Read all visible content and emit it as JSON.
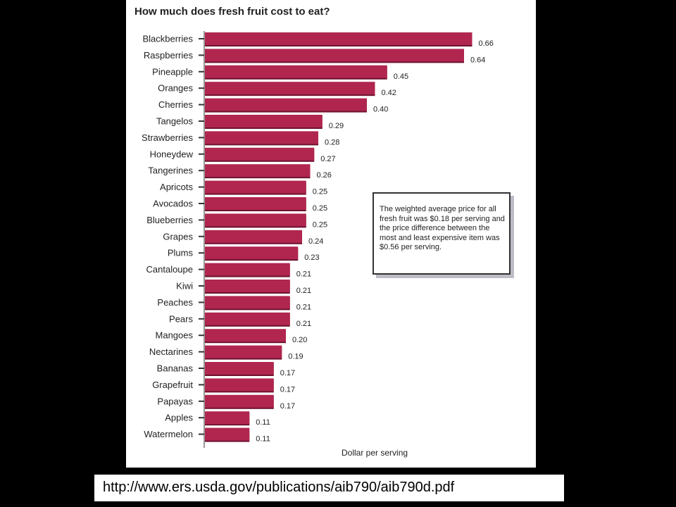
{
  "source_url": "http://www.ers.usda.gov/publications/aib790/aib790d.pdf",
  "note": "The weighted average price for all fresh fruit was $0.18 per serving and the price difference between the most and least expensive item was $0.56 per serving.",
  "colors": {
    "bar": "#b0264f",
    "bar_shadow": "#6e1230",
    "background": "#000000",
    "panel": "#ffffff"
  },
  "chart_data": {
    "type": "bar",
    "orientation": "horizontal",
    "title": "How much does fresh fruit cost to eat?",
    "xlabel": "Dollar per serving",
    "ylabel": "",
    "grid": false,
    "categories": [
      "Blackberries",
      "Raspberries",
      "Pineapple",
      "Oranges",
      "Cherries",
      "Tangelos",
      "Strawberries",
      "Honeydew",
      "Tangerines",
      "Apricots",
      "Avocados",
      "Blueberries",
      "Grapes",
      "Plums",
      "Cantaloupe",
      "Kiwi",
      "Peaches",
      "Pears",
      "Mangoes",
      "Nectarines",
      "Bananas",
      "Grapefruit",
      "Papayas",
      "Apples",
      "Watermelon"
    ],
    "values": [
      0.66,
      0.64,
      0.45,
      0.42,
      0.4,
      0.29,
      0.28,
      0.27,
      0.26,
      0.25,
      0.25,
      0.25,
      0.24,
      0.23,
      0.21,
      0.21,
      0.21,
      0.21,
      0.2,
      0.19,
      0.17,
      0.17,
      0.17,
      0.11,
      0.11
    ],
    "value_labels": [
      "0.66",
      "0.64",
      "0.45",
      "0.42",
      "0.40",
      "0.29",
      "0.28",
      "0.27",
      "0.26",
      "0.25",
      "0.25",
      "0.25",
      "0.24",
      "0.23",
      "0.21",
      "0.21",
      "0.21",
      "0.21",
      "0.20",
      "0.19",
      "0.17",
      "0.17",
      "0.17",
      "0.11",
      "0.11"
    ]
  }
}
